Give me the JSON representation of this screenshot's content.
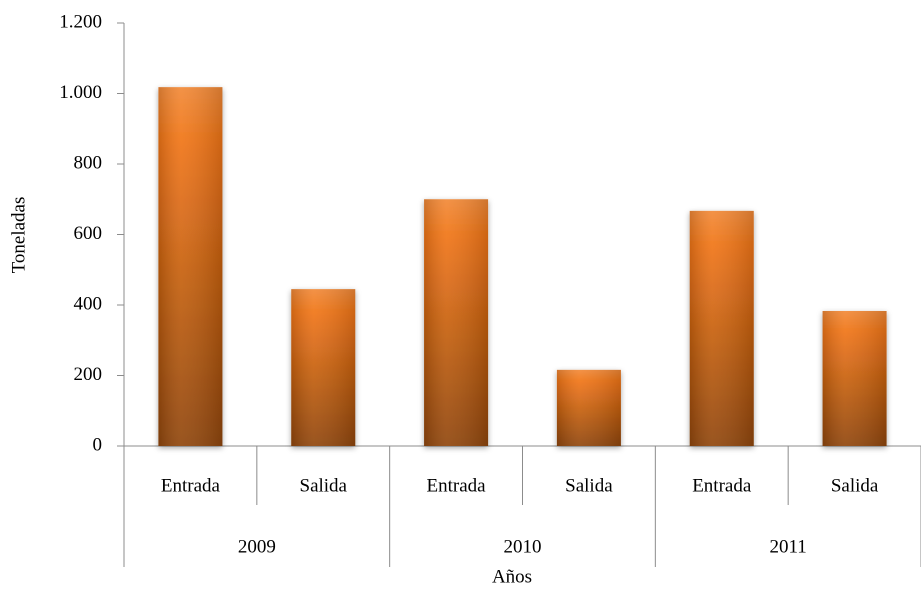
{
  "chart_data": {
    "type": "bar",
    "categories": [
      "Entrada",
      "Salida",
      "Entrada",
      "Salida",
      "Entrada",
      "Salida"
    ],
    "category_groups": [
      "2009",
      "2010",
      "2011"
    ],
    "values": [
      1018,
      445,
      700,
      216,
      667,
      383
    ],
    "color": "#f07414",
    "ylim": [
      0,
      1200
    ],
    "yticks": [
      0,
      200,
      400,
      600,
      800,
      {
        "value": 1000,
        "label": "1.000"
      },
      {
        "value": 1200,
        "label": "1.200"
      }
    ],
    "ylabel": "Toneladas",
    "xlabel": "Años",
    "grid": false
  }
}
